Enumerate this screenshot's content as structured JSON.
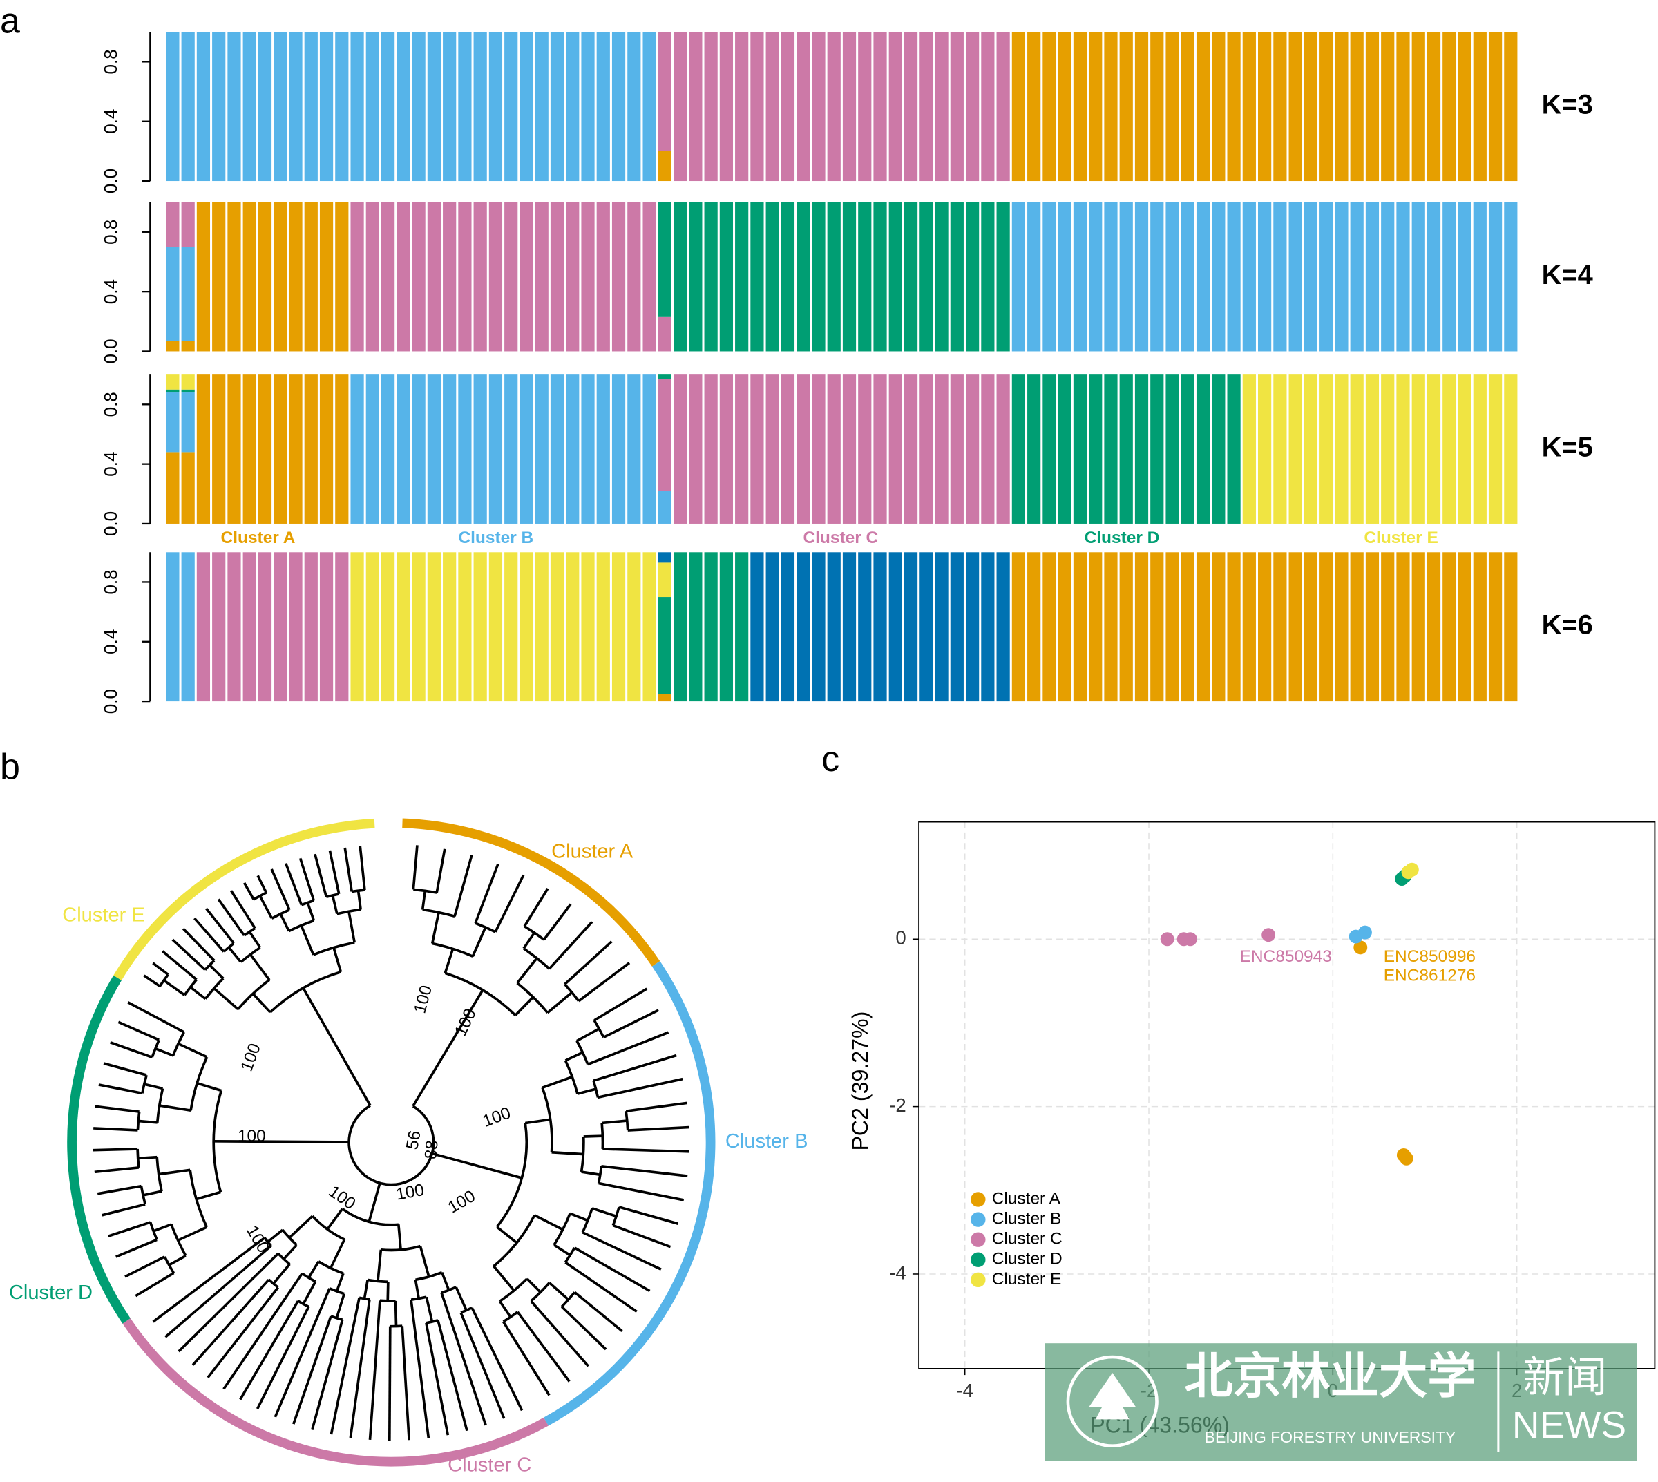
{
  "panel_labels": [
    "a",
    "b",
    "c"
  ],
  "chart_data": [
    {
      "type": "structure",
      "label": "K=3",
      "ylim": [
        0,
        1
      ],
      "yticks": [
        {
          "value": 0,
          "label": "0.0"
        },
        {
          "value": 0.4,
          "label": "0.4"
        },
        {
          "value": 0.8,
          "label": "0.8"
        }
      ],
      "colors": [
        "#e69f00",
        "#56b4e9",
        "#cc79a7"
      ],
      "groups": [
        {
          "n": 32,
          "values": [
            0,
            1,
            0
          ]
        },
        {
          "n": 1,
          "values": [
            0.2,
            0,
            0.8
          ]
        },
        {
          "n": 22,
          "values": [
            0,
            0,
            1
          ]
        },
        {
          "n": 33,
          "values": [
            1,
            0,
            0
          ]
        }
      ]
    },
    {
      "type": "structure",
      "label": "K=4",
      "ylim": [
        0,
        1
      ],
      "yticks": [
        {
          "value": 0,
          "label": "0.0"
        },
        {
          "value": 0.4,
          "label": "0.4"
        },
        {
          "value": 0.8,
          "label": "0.8"
        }
      ],
      "colors": [
        "#e69f00",
        "#56b4e9",
        "#cc79a7",
        "#009e73"
      ],
      "groups": [
        {
          "n": 2,
          "values": [
            0.07,
            0.63,
            0.3,
            0
          ]
        },
        {
          "n": 10,
          "values": [
            1,
            0,
            0,
            0
          ]
        },
        {
          "n": 20,
          "values": [
            0,
            0,
            1,
            0
          ]
        },
        {
          "n": 1,
          "values": [
            0,
            0,
            0.23,
            0.77
          ]
        },
        {
          "n": 22,
          "values": [
            0,
            0,
            0,
            1
          ]
        },
        {
          "n": 33,
          "values": [
            0,
            1,
            0,
            0
          ]
        }
      ]
    },
    {
      "type": "structure",
      "label": "K=5",
      "ylim": [
        0,
        1
      ],
      "yticks": [
        {
          "value": 0,
          "label": "0.0"
        },
        {
          "value": 0.4,
          "label": "0.4"
        },
        {
          "value": 0.8,
          "label": "0.8"
        }
      ],
      "colors": [
        "#e69f00",
        "#56b4e9",
        "#cc79a7",
        "#009e73",
        "#f0e442"
      ],
      "groups": [
        {
          "n": 2,
          "values": [
            0.48,
            0.4,
            0,
            0.02,
            0.1
          ]
        },
        {
          "n": 10,
          "values": [
            1,
            0,
            0,
            0,
            0
          ]
        },
        {
          "n": 20,
          "values": [
            0,
            1,
            0,
            0,
            0
          ]
        },
        {
          "n": 1,
          "values": [
            0,
            0.22,
            0.75,
            0.03,
            0
          ]
        },
        {
          "n": 22,
          "values": [
            0,
            0,
            1,
            0,
            0
          ]
        },
        {
          "n": 15,
          "values": [
            0,
            0,
            0,
            1,
            0
          ]
        },
        {
          "n": 18,
          "values": [
            0,
            0,
            0,
            0,
            1
          ]
        }
      ],
      "cluster_labels": [
        {
          "text": "Cluster A",
          "color": "#e69f00"
        },
        {
          "text": "Cluster B",
          "color": "#56b4e9"
        },
        {
          "text": "Cluster C",
          "color": "#cc79a7"
        },
        {
          "text": "Cluster D",
          "color": "#009e73"
        },
        {
          "text": "Cluster E",
          "color": "#f0e442"
        }
      ]
    },
    {
      "type": "structure",
      "label": "K=6",
      "ylim": [
        0,
        1
      ],
      "yticks": [
        {
          "value": 0,
          "label": "0.0"
        },
        {
          "value": 0.4,
          "label": "0.4"
        },
        {
          "value": 0.8,
          "label": "0.8"
        }
      ],
      "colors": [
        "#e69f00",
        "#009e73",
        "#f0e442",
        "#0072b2",
        "#56b4e9",
        "#cc79a7"
      ],
      "groups": [
        {
          "n": 2,
          "values": [
            0,
            0,
            0,
            0,
            1,
            0
          ]
        },
        {
          "n": 10,
          "values": [
            0,
            0,
            0,
            0,
            0,
            1
          ]
        },
        {
          "n": 20,
          "values": [
            0,
            0,
            1,
            0,
            0,
            0
          ]
        },
        {
          "n": 1,
          "values": [
            0.05,
            0.65,
            0.23,
            0.07,
            0,
            0
          ]
        },
        {
          "n": 5,
          "values": [
            0,
            1,
            0,
            0,
            0,
            0
          ]
        },
        {
          "n": 17,
          "values": [
            0,
            0,
            0,
            1,
            0,
            0
          ]
        },
        {
          "n": 33,
          "values": [
            1,
            0,
            0,
            0,
            0,
            0
          ]
        }
      ]
    },
    {
      "type": "scatter",
      "x_label": "PC1 (43.56%)",
      "y_label": "PC2 (39.27%)",
      "xlim": [
        -4.5,
        3.5
      ],
      "ylim": [
        -5.13,
        1.4
      ],
      "xticks": [
        -4,
        -2,
        0,
        2
      ],
      "yticks": [
        -4,
        -2,
        0
      ],
      "grid": true,
      "legend": "bottom-left",
      "series": [
        {
          "name": "Cluster A",
          "color": "#e69f00",
          "x": [
            0.3,
            0.77,
            0.8
          ],
          "y": [
            -0.1,
            -2.58,
            -2.62
          ]
        },
        {
          "name": "Cluster B",
          "color": "#56b4e9",
          "x": [
            0.25,
            0.35
          ],
          "y": [
            0.03,
            0.08
          ]
        },
        {
          "name": "Cluster C",
          "color": "#cc79a7",
          "x": [
            -1.8,
            -1.62,
            -1.55,
            -0.7
          ],
          "y": [
            0,
            0,
            0,
            0.05
          ]
        },
        {
          "name": "Cluster D",
          "color": "#009e73",
          "x": [
            0.75,
            0.78
          ],
          "y": [
            0.72,
            0.75
          ]
        },
        {
          "name": "Cluster E",
          "color": "#f0e442",
          "x": [
            0.82,
            0.86
          ],
          "y": [
            0.8,
            0.83
          ]
        }
      ],
      "annotations": [
        {
          "text": "ENC850943",
          "color": "#cc79a7"
        },
        {
          "text": "ENC850996",
          "color": "#e69f00"
        },
        {
          "text": "ENC861276",
          "color": "#e69f00"
        }
      ]
    }
  ],
  "tree": {
    "clusters": [
      {
        "name": "Cluster A",
        "color": "#e69f00"
      },
      {
        "name": "Cluster B",
        "color": "#56b4e9"
      },
      {
        "name": "Cluster C",
        "color": "#cc79a7"
      },
      {
        "name": "Cluster D",
        "color": "#009e73"
      },
      {
        "name": "Cluster E",
        "color": "#f0e442"
      }
    ],
    "bootstrap": [
      "100",
      "100",
      "100",
      "100",
      "100",
      "100",
      "100",
      "100",
      "56",
      "88",
      "100"
    ]
  },
  "watermark": {
    "name_cn": "北京林业大学",
    "name_en": "BEIJING FORESTRY UNIVERSITY",
    "news_cn": "新闻",
    "news_en": "NEWS"
  }
}
